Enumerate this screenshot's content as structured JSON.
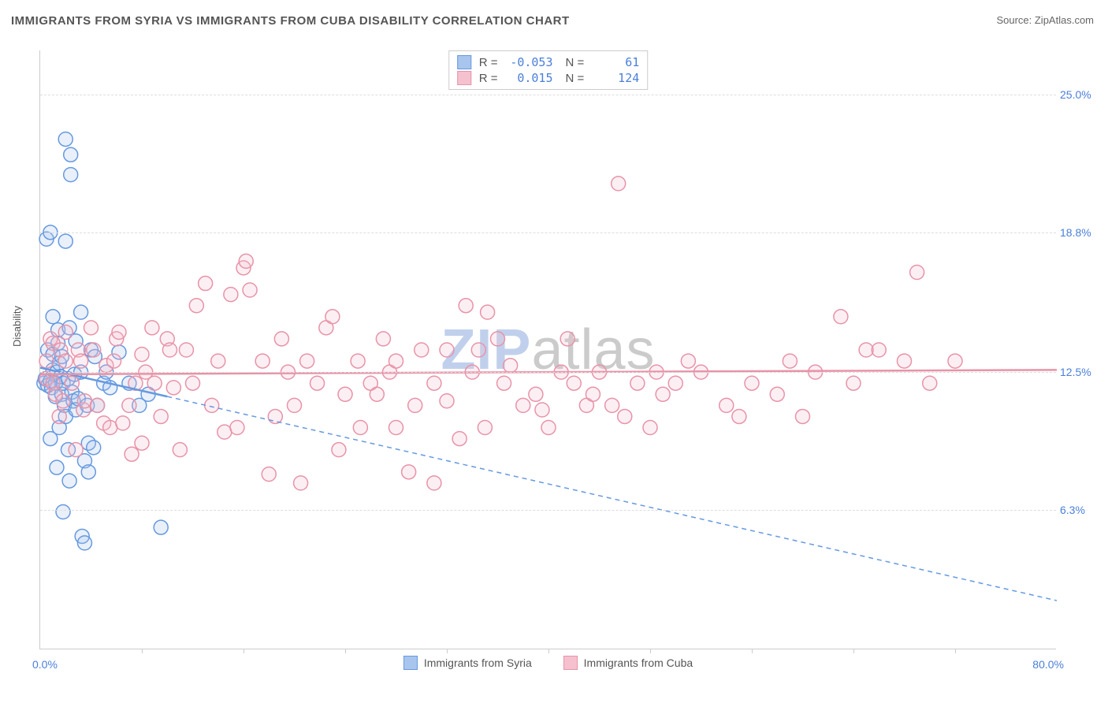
{
  "title": "IMMIGRANTS FROM SYRIA VS IMMIGRANTS FROM CUBA DISABILITY CORRELATION CHART",
  "source": "Source: ZipAtlas.com",
  "y_axis_label": "Disability",
  "watermark": {
    "part1": "ZIP",
    "part2": "atlas"
  },
  "chart": {
    "type": "scatter",
    "xlim": [
      0.0,
      80.0
    ],
    "ylim": [
      0.0,
      27.0
    ],
    "y_ticks": [
      6.3,
      12.5,
      18.8,
      25.0
    ],
    "y_tick_labels": [
      "6.3%",
      "12.5%",
      "18.8%",
      "25.0%"
    ],
    "x_origin_label": "0.0%",
    "x_max_label": "80.0%",
    "x_minor_ticks": [
      8,
      16,
      24,
      32,
      40,
      48,
      56,
      64,
      72
    ],
    "background_color": "#ffffff",
    "grid_color": "#dddddd",
    "marker_radius": 9,
    "marker_stroke_width": 1.5,
    "marker_fill_opacity": 0.25,
    "trend_line_width": 2.5,
    "series": [
      {
        "name": "Immigrants from Syria",
        "stroke": "#6699e0",
        "fill": "#a8c5ed",
        "R": "-0.053",
        "N": "61",
        "trend": {
          "x1": 0.0,
          "y1": 12.7,
          "x2": 10.0,
          "y2": 11.4,
          "dash_x2": 80.0,
          "dash_y2": 2.2
        },
        "points": [
          [
            0.3,
            12.0
          ],
          [
            0.4,
            12.2
          ],
          [
            0.5,
            18.5
          ],
          [
            0.6,
            11.9
          ],
          [
            0.6,
            13.5
          ],
          [
            0.8,
            12.1
          ],
          [
            0.8,
            9.5
          ],
          [
            0.8,
            18.8
          ],
          [
            0.9,
            11.8
          ],
          [
            1.0,
            12.6
          ],
          [
            1.0,
            15.0
          ],
          [
            1.0,
            13.3
          ],
          [
            1.2,
            12.0
          ],
          [
            1.2,
            11.4
          ],
          [
            1.3,
            12.5
          ],
          [
            1.3,
            8.2
          ],
          [
            1.4,
            13.8
          ],
          [
            1.4,
            14.4
          ],
          [
            1.5,
            10.0
          ],
          [
            1.5,
            12.9
          ],
          [
            1.6,
            12.3
          ],
          [
            1.7,
            11.5
          ],
          [
            1.7,
            13.2
          ],
          [
            1.8,
            12.0
          ],
          [
            1.8,
            6.2
          ],
          [
            1.9,
            11.0
          ],
          [
            2.0,
            10.5
          ],
          [
            2.0,
            18.4
          ],
          [
            2.0,
            23.0
          ],
          [
            2.2,
            12.2
          ],
          [
            2.2,
            9.0
          ],
          [
            2.3,
            7.6
          ],
          [
            2.3,
            14.5
          ],
          [
            2.4,
            22.3
          ],
          [
            2.4,
            21.4
          ],
          [
            2.5,
            11.6
          ],
          [
            2.6,
            11.2
          ],
          [
            2.7,
            12.4
          ],
          [
            2.8,
            13.9
          ],
          [
            2.8,
            10.8
          ],
          [
            3.0,
            11.3
          ],
          [
            3.2,
            12.5
          ],
          [
            3.2,
            15.2
          ],
          [
            3.3,
            5.1
          ],
          [
            3.5,
            4.8
          ],
          [
            3.5,
            8.5
          ],
          [
            3.7,
            11.0
          ],
          [
            3.8,
            8.0
          ],
          [
            3.8,
            9.3
          ],
          [
            4.0,
            13.5
          ],
          [
            4.2,
            9.1
          ],
          [
            4.3,
            13.2
          ],
          [
            4.5,
            11.0
          ],
          [
            5.0,
            12.0
          ],
          [
            5.2,
            12.5
          ],
          [
            5.5,
            11.8
          ],
          [
            6.2,
            13.4
          ],
          [
            7.0,
            12.0
          ],
          [
            7.8,
            11.0
          ],
          [
            8.5,
            11.5
          ],
          [
            9.5,
            5.5
          ]
        ]
      },
      {
        "name": "Immigrants from Cuba",
        "stroke": "#e893a8",
        "fill": "#f5c1cf",
        "R": "0.015",
        "N": "124",
        "trend": {
          "x1": 0.0,
          "y1": 12.4,
          "x2": 80.0,
          "y2": 12.6
        },
        "points": [
          [
            0.5,
            13.0
          ],
          [
            0.5,
            12.2
          ],
          [
            0.8,
            14.0
          ],
          [
            1.0,
            12.0
          ],
          [
            1.0,
            13.8
          ],
          [
            1.2,
            11.5
          ],
          [
            1.5,
            10.5
          ],
          [
            1.6,
            13.5
          ],
          [
            1.8,
            11.2
          ],
          [
            2.0,
            13.0
          ],
          [
            2.0,
            14.3
          ],
          [
            2.5,
            12.0
          ],
          [
            2.8,
            9.0
          ],
          [
            3.0,
            13.5
          ],
          [
            3.2,
            13.0
          ],
          [
            3.4,
            10.8
          ],
          [
            3.5,
            11.2
          ],
          [
            4.0,
            14.5
          ],
          [
            4.2,
            13.5
          ],
          [
            4.5,
            11.0
          ],
          [
            5.0,
            10.2
          ],
          [
            5.2,
            12.8
          ],
          [
            5.5,
            10.0
          ],
          [
            5.8,
            13.0
          ],
          [
            6.0,
            14.0
          ],
          [
            6.2,
            14.3
          ],
          [
            6.5,
            10.2
          ],
          [
            7.0,
            11.0
          ],
          [
            7.2,
            8.8
          ],
          [
            7.5,
            12.0
          ],
          [
            8.0,
            13.3
          ],
          [
            8.0,
            9.3
          ],
          [
            8.3,
            12.5
          ],
          [
            8.8,
            14.5
          ],
          [
            9.0,
            12.0
          ],
          [
            9.5,
            10.5
          ],
          [
            10.0,
            14.0
          ],
          [
            10.2,
            13.5
          ],
          [
            10.5,
            11.8
          ],
          [
            11.0,
            9.0
          ],
          [
            11.5,
            13.5
          ],
          [
            12.0,
            12.0
          ],
          [
            12.3,
            15.5
          ],
          [
            13.0,
            16.5
          ],
          [
            13.5,
            11.0
          ],
          [
            14.0,
            13.0
          ],
          [
            14.5,
            9.8
          ],
          [
            15.0,
            16.0
          ],
          [
            15.5,
            10.0
          ],
          [
            16.0,
            17.2
          ],
          [
            16.2,
            17.5
          ],
          [
            16.5,
            16.2
          ],
          [
            17.5,
            13.0
          ],
          [
            18.0,
            7.9
          ],
          [
            18.5,
            10.5
          ],
          [
            19.0,
            14.0
          ],
          [
            19.5,
            12.5
          ],
          [
            20.0,
            11.0
          ],
          [
            20.5,
            7.5
          ],
          [
            21.0,
            13.0
          ],
          [
            21.8,
            12.0
          ],
          [
            22.5,
            14.5
          ],
          [
            23.0,
            15.0
          ],
          [
            23.5,
            9.0
          ],
          [
            24.0,
            11.5
          ],
          [
            25.0,
            13.0
          ],
          [
            25.2,
            10.0
          ],
          [
            26.0,
            12.0
          ],
          [
            26.5,
            11.5
          ],
          [
            27.0,
            14.0
          ],
          [
            27.5,
            12.5
          ],
          [
            28.0,
            13.0
          ],
          [
            28.0,
            10.0
          ],
          [
            29.0,
            8.0
          ],
          [
            29.5,
            11.0
          ],
          [
            30.0,
            13.5
          ],
          [
            31.0,
            12.0
          ],
          [
            31.0,
            7.5
          ],
          [
            32.0,
            13.5
          ],
          [
            32.0,
            11.2
          ],
          [
            33.0,
            9.5
          ],
          [
            33.5,
            15.5
          ],
          [
            34.0,
            12.5
          ],
          [
            34.5,
            13.5
          ],
          [
            35.0,
            10.0
          ],
          [
            35.2,
            15.2
          ],
          [
            36.0,
            14.0
          ],
          [
            36.5,
            12.0
          ],
          [
            37.0,
            12.8
          ],
          [
            38.0,
            11.0
          ],
          [
            39.0,
            11.5
          ],
          [
            39.5,
            10.8
          ],
          [
            40.0,
            10.0
          ],
          [
            41.0,
            12.5
          ],
          [
            41.5,
            14.0
          ],
          [
            42.0,
            12.0
          ],
          [
            43.0,
            11.0
          ],
          [
            43.5,
            11.5
          ],
          [
            44.0,
            12.5
          ],
          [
            45.0,
            11.0
          ],
          [
            45.5,
            21.0
          ],
          [
            46.0,
            10.5
          ],
          [
            47.0,
            12.0
          ],
          [
            48.0,
            10.0
          ],
          [
            48.5,
            12.5
          ],
          [
            49.0,
            11.5
          ],
          [
            50.0,
            12.0
          ],
          [
            51.0,
            13.0
          ],
          [
            52.0,
            12.5
          ],
          [
            54.0,
            11.0
          ],
          [
            55.0,
            10.5
          ],
          [
            56.0,
            12.0
          ],
          [
            58.0,
            11.5
          ],
          [
            59.0,
            13.0
          ],
          [
            60.0,
            10.5
          ],
          [
            61.0,
            12.5
          ],
          [
            63.0,
            15.0
          ],
          [
            64.0,
            12.0
          ],
          [
            65.0,
            13.5
          ],
          [
            66.0,
            13.5
          ],
          [
            68.0,
            13.0
          ],
          [
            69.0,
            17.0
          ],
          [
            70.0,
            12.0
          ],
          [
            72.0,
            13.0
          ]
        ]
      }
    ]
  },
  "bottom_legend": [
    {
      "label": "Immigrants from Syria",
      "stroke": "#6699e0",
      "fill": "#a8c5ed"
    },
    {
      "label": "Immigrants from Cuba",
      "stroke": "#e893a8",
      "fill": "#f5c1cf"
    }
  ]
}
